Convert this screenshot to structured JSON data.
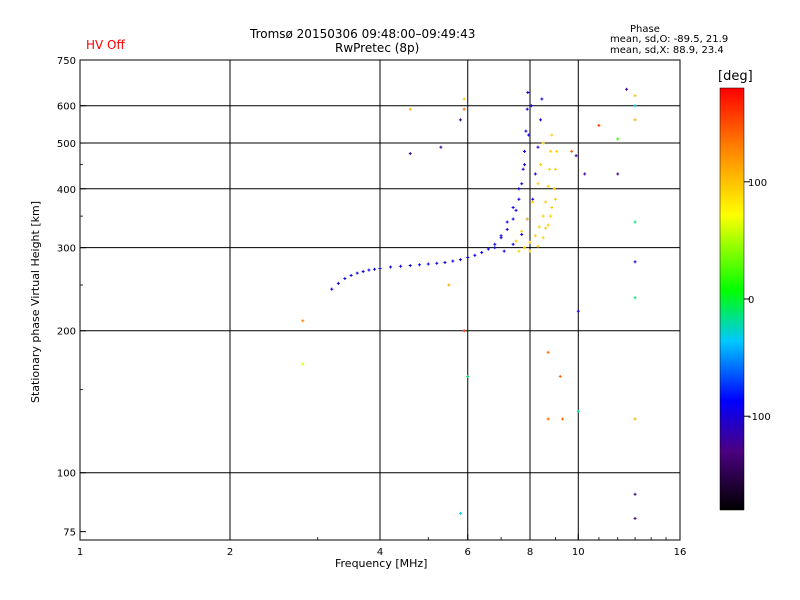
{
  "header": {
    "status": "HV Off",
    "status_color": "#ff0000",
    "title": "Tromsø 20150306 09:48:00–09:49:43",
    "subtitle": "RwPretec (8p)",
    "phase_title": "Phase",
    "phase_o": "mean, sd,O: -89.5, 21.9",
    "phase_x": "mean, sd,X:  88.9, 23.4"
  },
  "chart_data": {
    "type": "scatter",
    "xlabel": "Frequency [MHz]",
    "ylabel": "Stationary phase Virtual Height [km]",
    "x_scale": "log",
    "y_scale": "log",
    "xlim": [
      1,
      16
    ],
    "ylim": [
      72,
      750
    ],
    "grid": true,
    "x_ticks": [
      1,
      2,
      4,
      6,
      8,
      10,
      16
    ],
    "y_ticks": [
      75,
      100,
      200,
      300,
      400,
      500,
      600,
      750
    ],
    "colorbar": {
      "label": "[deg]",
      "range": [
        -180,
        180
      ],
      "ticks": [
        -100,
        0,
        100
      ]
    },
    "series": [
      {
        "trace": "O-mode (blue)",
        "color_value": -95,
        "points": [
          [
            3.2,
            245
          ],
          [
            3.3,
            252
          ],
          [
            3.4,
            258
          ],
          [
            3.5,
            262
          ],
          [
            3.6,
            265
          ],
          [
            3.7,
            267
          ],
          [
            3.8,
            269
          ],
          [
            3.9,
            270
          ],
          [
            4.0,
            271
          ],
          [
            4.2,
            273
          ],
          [
            4.4,
            274
          ],
          [
            4.6,
            275
          ],
          [
            4.8,
            276
          ],
          [
            5.0,
            277
          ],
          [
            5.2,
            278
          ],
          [
            5.4,
            279
          ],
          [
            5.6,
            281
          ],
          [
            5.8,
            283
          ],
          [
            6.0,
            286
          ],
          [
            6.2,
            289
          ],
          [
            6.4,
            293
          ],
          [
            6.6,
            298
          ],
          [
            6.8,
            305
          ],
          [
            7.0,
            315
          ],
          [
            7.2,
            328
          ],
          [
            7.4,
            345
          ],
          [
            7.5,
            360
          ],
          [
            7.6,
            380
          ],
          [
            7.7,
            410
          ],
          [
            7.75,
            440
          ],
          [
            7.8,
            480
          ],
          [
            7.85,
            530
          ],
          [
            7.9,
            590
          ],
          [
            7.92,
            640
          ],
          [
            6.8,
            300
          ],
          [
            7.0,
            318
          ],
          [
            7.2,
            340
          ],
          [
            7.4,
            365
          ],
          [
            7.6,
            400
          ],
          [
            7.8,
            450
          ],
          [
            7.95,
            520
          ],
          [
            8.05,
            600
          ],
          [
            7.1,
            295
          ],
          [
            7.4,
            305
          ],
          [
            7.7,
            320
          ],
          [
            7.9,
            345
          ],
          [
            8.1,
            380
          ],
          [
            8.2,
            430
          ],
          [
            8.3,
            490
          ],
          [
            8.4,
            560
          ],
          [
            8.45,
            620
          ]
        ]
      },
      {
        "trace": "X-mode (yellow)",
        "color_value": 95,
        "points": [
          [
            7.6,
            295
          ],
          [
            7.8,
            300
          ],
          [
            8.0,
            308
          ],
          [
            8.2,
            318
          ],
          [
            8.35,
            332
          ],
          [
            8.5,
            350
          ],
          [
            8.6,
            375
          ],
          [
            8.7,
            405
          ],
          [
            8.75,
            440
          ],
          [
            8.8,
            480
          ],
          [
            8.85,
            520
          ],
          [
            8.0,
            295
          ],
          [
            8.3,
            302
          ],
          [
            8.5,
            315
          ],
          [
            8.7,
            335
          ],
          [
            8.85,
            365
          ],
          [
            8.95,
            400
          ],
          [
            9.0,
            440
          ],
          [
            9.05,
            480
          ],
          [
            7.5,
            310
          ],
          [
            7.7,
            325
          ],
          [
            7.9,
            345
          ],
          [
            8.1,
            375
          ],
          [
            8.3,
            410
          ],
          [
            8.4,
            450
          ],
          [
            8.5,
            500
          ],
          [
            8.6,
            330
          ],
          [
            8.8,
            350
          ],
          [
            9.0,
            380
          ]
        ]
      }
    ],
    "outliers": [
      [
        4.6,
        590,
        110
      ],
      [
        5.9,
        620,
        100
      ],
      [
        5.8,
        560,
        -120
      ],
      [
        4.6,
        475,
        -120
      ],
      [
        5.3,
        490,
        -120
      ],
      [
        5.9,
        590,
        140
      ],
      [
        5.5,
        250,
        110
      ],
      [
        2.8,
        210,
        130
      ],
      [
        2.8,
        170,
        60
      ],
      [
        5.9,
        200,
        160
      ],
      [
        6.0,
        160,
        -10
      ],
      [
        5.8,
        82,
        -30
      ],
      [
        8.7,
        180,
        140
      ],
      [
        9.2,
        160,
        140
      ],
      [
        9.3,
        130,
        140
      ],
      [
        8.7,
        130,
        140
      ],
      [
        10.0,
        135,
        -20
      ],
      [
        10.0,
        220,
        -100
      ],
      [
        12.5,
        650,
        -120
      ],
      [
        13.0,
        630,
        100
      ],
      [
        13.0,
        600,
        -30
      ],
      [
        13.0,
        560,
        110
      ],
      [
        11.0,
        545,
        160
      ],
      [
        12.0,
        510,
        20
      ],
      [
        12.0,
        430,
        -130
      ],
      [
        13.0,
        340,
        -10
      ],
      [
        13.0,
        280,
        -100
      ],
      [
        13.0,
        235,
        -10
      ],
      [
        13.0,
        130,
        110
      ],
      [
        13.0,
        90,
        -130
      ],
      [
        13.0,
        80,
        -130
      ],
      [
        9.9,
        470,
        -120
      ],
      [
        10.3,
        430,
        -120
      ],
      [
        9.7,
        480,
        140
      ]
    ]
  }
}
